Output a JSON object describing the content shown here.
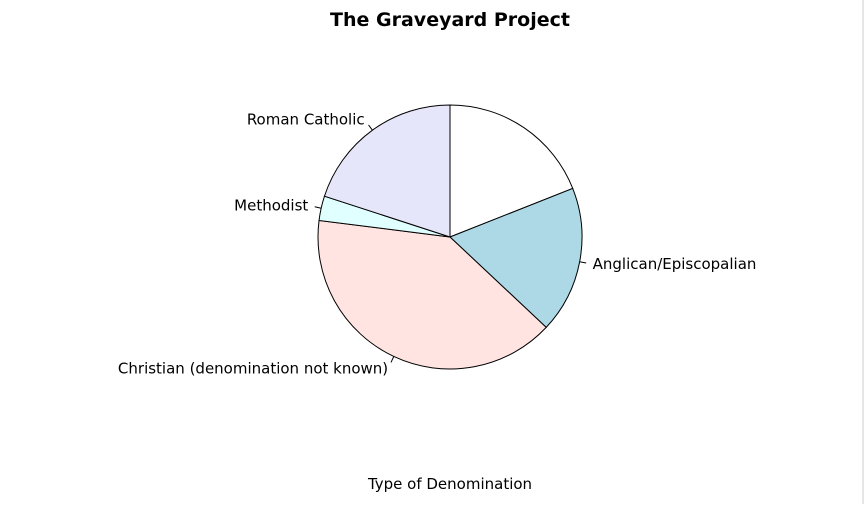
{
  "chart_data": {
    "type": "pie",
    "title": "The Graveyard Project",
    "xlabel": "Type of Denomination",
    "slices": [
      {
        "label": "",
        "value": 19,
        "color": "#ffffff"
      },
      {
        "label": "Anglican/Episcopalian",
        "value": 18,
        "color": "#add8e6"
      },
      {
        "label": "Christian (denomination not known)",
        "value": 40,
        "color": "#ffe4e1"
      },
      {
        "label": "Methodist",
        "value": 3,
        "color": "#e0ffff"
      },
      {
        "label": "Roman Catholic",
        "value": 20,
        "color": "#e6e6fa"
      }
    ],
    "start_angle_deg": 90,
    "direction": "clockwise",
    "grid": false,
    "legend": "none",
    "border_color": "#000000"
  }
}
